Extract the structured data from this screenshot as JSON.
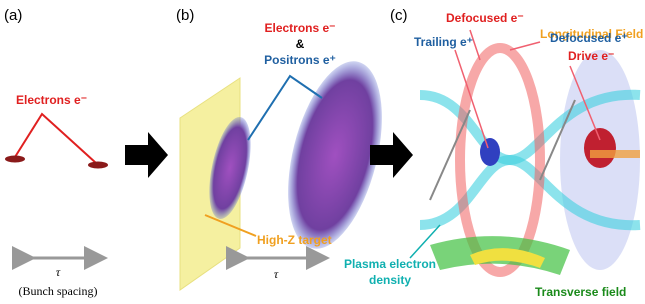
{
  "panels": [
    {
      "label": "(a)",
      "texts": {
        "electrons": "Electrons e⁻",
        "tau": "τ",
        "spacing": "(Bunch spacing)"
      }
    },
    {
      "label": "(b)",
      "texts": {
        "electrons": "Electrons e⁻",
        "and": "&",
        "positrons": "Positrons e⁺",
        "target": "High-Z target",
        "tau": "τ"
      }
    },
    {
      "label": "(c)",
      "texts": {
        "defocused_e": "Defocused e⁻",
        "longitudinal": "Longitudinal Field",
        "trailing": "Trailing e⁺",
        "defocused_p": "Defocused e⁺",
        "drive": "Drive e⁻",
        "plasma": [
          "Plasma electron",
          "density"
        ],
        "transverse": "Transverse field"
      }
    }
  ]
}
